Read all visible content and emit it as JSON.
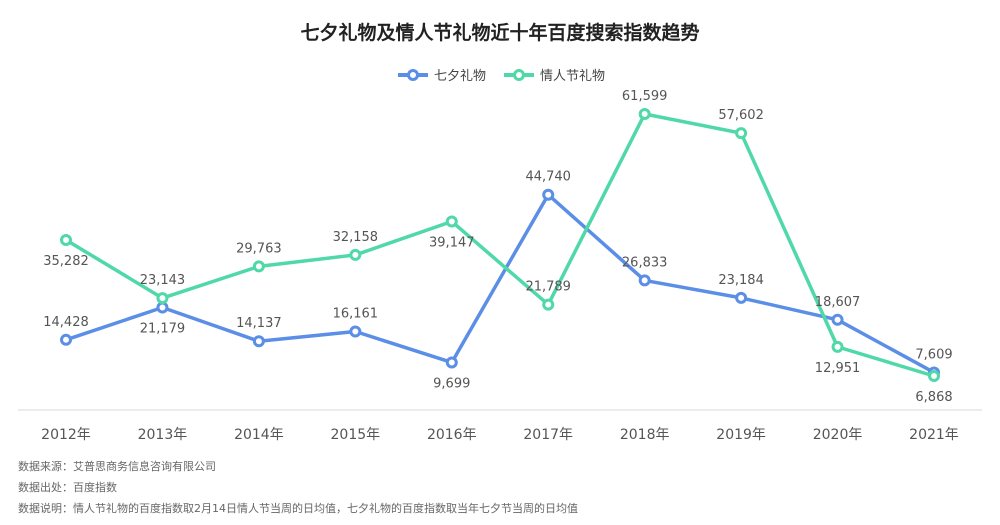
{
  "chart_data": {
    "type": "line",
    "title": "七夕礼物及情人节礼物近十年百度搜索指数趋势",
    "categories": [
      "2012年",
      "2013年",
      "2014年",
      "2015年",
      "2016年",
      "2017年",
      "2018年",
      "2019年",
      "2020年",
      "2021年"
    ],
    "series": [
      {
        "name": "七夕礼物",
        "color": "#5b8ee6",
        "values": [
          14428,
          21179,
          14137,
          16161,
          9699,
          44740,
          26833,
          23184,
          18607,
          7609
        ],
        "labels": [
          "14,428",
          "21,179",
          "14,137",
          "16,161",
          "9,699",
          "44,740",
          "26,833",
          "23,184",
          "18,607",
          "7,609"
        ]
      },
      {
        "name": "情人节礼物",
        "color": "#4fd8a8",
        "values": [
          35282,
          23143,
          29763,
          32158,
          39147,
          21789,
          61599,
          57602,
          12951,
          6868
        ],
        "labels": [
          "35,282",
          "23,143",
          "29,763",
          "32,158",
          "39,147",
          "21,789",
          "61,599",
          "57,602",
          "12,951",
          "6,868"
        ]
      }
    ],
    "xlabel": "",
    "ylabel": "",
    "ylim": [
      0,
      65000
    ],
    "grid": false,
    "legend": "top-center"
  },
  "footer": {
    "source": "数据来源：艾普思商务信息咨询有限公司",
    "origin": "数据出处：百度指数",
    "note": "数据说明：情人节礼物的百度指数取2月14日情人节当周的日均值，七夕礼物的百度指数取当年七夕节当周的日均值"
  }
}
